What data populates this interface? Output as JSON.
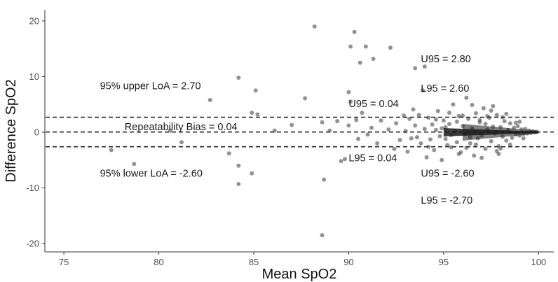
{
  "chart_data": {
    "type": "scatter",
    "title": "",
    "xlabel": "Mean SpO2",
    "ylabel": "Difference SpO2",
    "xlim": [
      74,
      100.8
    ],
    "ylim": [
      -21.5,
      22
    ],
    "xticks": [
      75,
      80,
      85,
      90,
      95,
      100
    ],
    "yticks": [
      -20,
      -10,
      0,
      10,
      20
    ],
    "grid": false,
    "reference_lines": [
      {
        "name": "upper LoA",
        "y": 2.7
      },
      {
        "name": "bias",
        "y": 0.04
      },
      {
        "name": "lower LoA",
        "y": -2.6
      }
    ],
    "annotations": [
      {
        "text": "95% upper LoA = 2.70",
        "x": 76.9,
        "y": 7.7
      },
      {
        "text": "Repeatability Bias = 0.04",
        "x": 78.2,
        "y": 0.4
      },
      {
        "text": "95% lower LoA = -2.60",
        "x": 76.9,
        "y": -8.0
      },
      {
        "text": "U95 = 0.04",
        "x": 90.0,
        "y": 4.5
      },
      {
        "text": "L95 = 0.04",
        "x": 90.0,
        "y": -5.2
      },
      {
        "text": "U95 = 2.80",
        "x": 93.8,
        "y": 12.6
      },
      {
        "text": "L95 = 2.60",
        "x": 93.8,
        "y": 7.3
      },
      {
        "text": "U95 = -2.60",
        "x": 93.8,
        "y": -8.0
      },
      {
        "text": "L95 = -2.70",
        "x": 93.8,
        "y": -12.8
      }
    ],
    "points": [
      [
        77.5,
        -3.2
      ],
      [
        78.7,
        -5.7
      ],
      [
        80.6,
        0.3
      ],
      [
        81.2,
        -1.8
      ],
      [
        82.7,
        5.8
      ],
      [
        83.7,
        -3.8
      ],
      [
        84.2,
        9.8
      ],
      [
        84.2,
        -6.0
      ],
      [
        84.2,
        -9.3
      ],
      [
        84.9,
        3.5
      ],
      [
        84.9,
        -7.4
      ],
      [
        85.1,
        7.5
      ],
      [
        85.2,
        3.2
      ],
      [
        86.1,
        0.3
      ],
      [
        87.0,
        1.3
      ],
      [
        87.7,
        6.1
      ],
      [
        88.2,
        19.0
      ],
      [
        88.6,
        1.8
      ],
      [
        88.7,
        -8.5
      ],
      [
        88.6,
        -18.5
      ],
      [
        89.0,
        0.3
      ],
      [
        89.4,
        2.0
      ],
      [
        89.6,
        -5.2
      ],
      [
        89.8,
        -4.8
      ],
      [
        90.0,
        7.2
      ],
      [
        90.0,
        1.2
      ],
      [
        90.1,
        15.4
      ],
      [
        90.1,
        5.5
      ],
      [
        90.3,
        18.0
      ],
      [
        90.4,
        2.2
      ],
      [
        90.5,
        -1.2
      ],
      [
        90.6,
        12.5
      ],
      [
        90.7,
        3.5
      ],
      [
        90.9,
        15.4
      ],
      [
        91.0,
        -0.4
      ],
      [
        91.2,
        0.8
      ],
      [
        91.3,
        13.2
      ],
      [
        91.5,
        -2.0
      ],
      [
        91.7,
        2.1
      ],
      [
        92.1,
        0.5
      ],
      [
        92.2,
        15.2
      ],
      [
        92.4,
        -3.0
      ],
      [
        92.5,
        1.6
      ],
      [
        92.7,
        -1.4
      ],
      [
        93.0,
        0.2
      ],
      [
        93.2,
        2.4
      ],
      [
        93.3,
        -1.1
      ],
      [
        93.4,
        4.1
      ],
      [
        93.5,
        11.5
      ],
      [
        93.5,
        1.2
      ],
      [
        93.6,
        -0.9
      ],
      [
        93.7,
        3.1
      ],
      [
        93.8,
        -2.0
      ],
      [
        93.9,
        7.5
      ],
      [
        94.0,
        11.8
      ],
      [
        94.0,
        0.6
      ],
      [
        94.1,
        -4.5
      ],
      [
        94.2,
        2.6
      ],
      [
        94.3,
        -1.3
      ],
      [
        94.4,
        1.4
      ],
      [
        94.5,
        -3.2
      ],
      [
        94.6,
        0.4
      ],
      [
        94.7,
        3.8
      ],
      [
        94.8,
        -0.7
      ],
      [
        94.9,
        -5.0
      ],
      [
        95.0,
        2.1
      ],
      [
        95.1,
        0.9
      ],
      [
        95.2,
        -2.3
      ],
      [
        95.3,
        1.5
      ],
      [
        95.4,
        -0.5
      ],
      [
        95.5,
        5.0
      ],
      [
        95.6,
        0.2
      ],
      [
        95.7,
        -1.8
      ],
      [
        95.8,
        2.9
      ],
      [
        95.9,
        -3.6
      ],
      [
        96.0,
        1.1
      ],
      [
        96.1,
        -0.3
      ],
      [
        96.2,
        6.2
      ],
      [
        96.3,
        2.4
      ],
      [
        96.4,
        -2.0
      ],
      [
        96.5,
        0.7
      ],
      [
        96.6,
        -4.2
      ],
      [
        96.7,
        3.4
      ],
      [
        96.8,
        -1.1
      ],
      [
        96.9,
        1.8
      ],
      [
        97.0,
        -0.6
      ],
      [
        97.1,
        4.3
      ],
      [
        97.2,
        -3.0
      ],
      [
        97.3,
        0.5
      ],
      [
        97.4,
        2.6
      ],
      [
        97.5,
        -1.6
      ],
      [
        97.6,
        1.0
      ],
      [
        97.7,
        -0.2
      ],
      [
        97.8,
        3.1
      ],
      [
        97.9,
        -2.5
      ],
      [
        98.0,
        0.9
      ],
      [
        98.1,
        -0.8
      ],
      [
        98.2,
        2.0
      ],
      [
        98.3,
        -1.5
      ],
      [
        98.4,
        0.4
      ],
      [
        98.5,
        1.6
      ],
      [
        98.6,
        -1.0
      ],
      [
        98.7,
        0.8
      ],
      [
        98.8,
        -0.4
      ],
      [
        98.9,
        1.1
      ],
      [
        99.0,
        -0.6
      ],
      [
        99.1,
        0.5
      ],
      [
        99.2,
        -0.3
      ],
      [
        99.3,
        0.6
      ],
      [
        99.4,
        -0.2
      ],
      [
        99.5,
        0.3
      ],
      [
        99.6,
        -0.1
      ],
      [
        99.7,
        0.2
      ],
      [
        99.8,
        0.0
      ],
      [
        99.9,
        0.1
      ],
      [
        95.3,
        3.5
      ],
      [
        95.8,
        -3.9
      ],
      [
        96.5,
        4.9
      ],
      [
        97.0,
        -4.6
      ],
      [
        97.5,
        3.9
      ],
      [
        96.2,
        -2.8
      ],
      [
        95.1,
        -1.2
      ],
      [
        94.6,
        2.3
      ],
      [
        97.8,
        -3.4
      ],
      [
        98.1,
        2.7
      ],
      [
        98.5,
        -2.2
      ],
      [
        96.9,
        2.2
      ],
      [
        95.7,
        1.9
      ],
      [
        96.4,
        -0.9
      ],
      [
        97.2,
        1.5
      ],
      [
        98.8,
        1.7
      ],
      [
        99.2,
        -1.1
      ],
      [
        94.2,
        -2.6
      ],
      [
        93.1,
        -3.5
      ],
      [
        92.9,
        3.0
      ],
      [
        97.6,
        4.7
      ],
      [
        96.0,
        3.0
      ],
      [
        95.4,
        -2.7
      ],
      [
        98.3,
        3.3
      ],
      [
        97.9,
        -3.9
      ],
      [
        96.7,
        -2.2
      ],
      [
        94.9,
        0.7
      ],
      [
        99.0,
        1.9
      ],
      [
        98.0,
        -2.9
      ],
      [
        97.3,
        2.9
      ]
    ]
  }
}
